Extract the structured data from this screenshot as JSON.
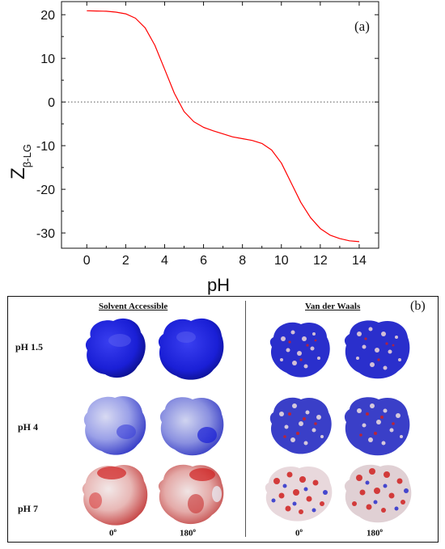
{
  "chart_data": {
    "type": "line",
    "panel_label": "(a)",
    "xlabel": "pH",
    "ylabel": "Z",
    "ylabel_subscript": "β-LG",
    "xlim": [
      -1.3,
      15.0
    ],
    "ylim": [
      -33.5,
      23.0
    ],
    "xticks": [
      0,
      2,
      4,
      6,
      8,
      10,
      12,
      14
    ],
    "yticks": [
      -30,
      -20,
      -10,
      0,
      10,
      20
    ],
    "reference_line": {
      "y": 0,
      "style": "dotted",
      "color": "#555555"
    },
    "grid": false,
    "series": [
      {
        "color": "#ff0000",
        "x": [
          0,
          0.5,
          1,
          1.5,
          2,
          2.5,
          3,
          3.5,
          4,
          4.5,
          5,
          5.5,
          6,
          6.5,
          7,
          7.5,
          8,
          8.5,
          9,
          9.5,
          10,
          10.5,
          11,
          11.5,
          12,
          12.5,
          13,
          13.5,
          14
        ],
        "y": [
          20.9,
          20.85,
          20.8,
          20.6,
          20.2,
          19.2,
          17.0,
          13.0,
          7.5,
          2.0,
          -2.2,
          -4.5,
          -5.8,
          -6.6,
          -7.3,
          -8.0,
          -8.4,
          -8.8,
          -9.5,
          -11.0,
          -14.0,
          -18.5,
          -23.0,
          -26.5,
          -29.0,
          -30.5,
          -31.3,
          -31.8,
          -32.0
        ]
      }
    ]
  },
  "panel_b": {
    "panel_label": "(b)",
    "left_heading": "Solvent Accessible",
    "right_heading": "Van der Waals",
    "rows": [
      "pH 1.5",
      "pH 4",
      "pH 7"
    ],
    "angles": [
      "0",
      "180"
    ],
    "angle_unit": "o",
    "surface_colors": {
      "sa_ph15": "#1a1fd6",
      "sa_ph4": "#9aa0e8",
      "sa_ph7": "#e08a86",
      "vdw_ph15": "#2a2fcc",
      "vdw_ph4": "#3a3fc8",
      "vdw_ph7": "#c84a4a"
    }
  }
}
